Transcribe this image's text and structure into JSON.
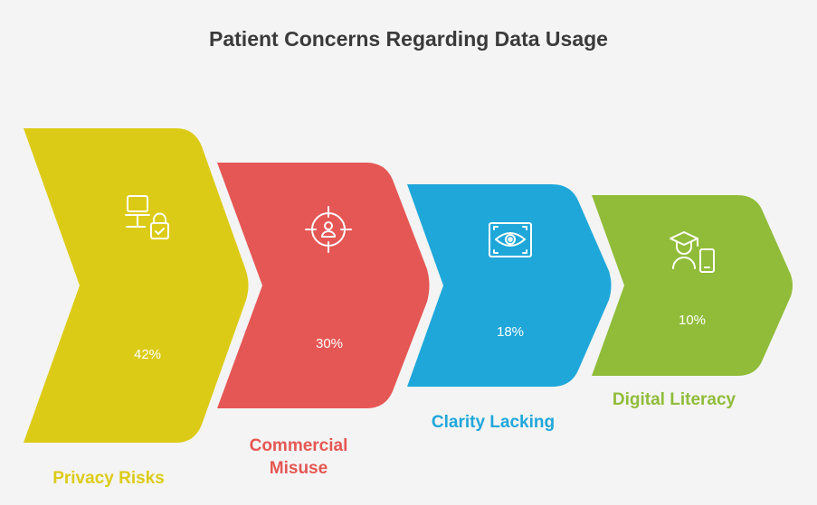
{
  "title": "Patient Concerns Regarding Data Usage",
  "steps": [
    {
      "label": "Privacy Risks",
      "value": "42%",
      "color": "#dccb16",
      "icon": "computer-lock-icon"
    },
    {
      "label": "Commercial\nMisuse",
      "value": "30%",
      "color": "#e55754",
      "icon": "target-person-icon"
    },
    {
      "label": "Clarity Lacking",
      "value": "18%",
      "color": "#1fa7da",
      "icon": "eye-scan-icon"
    },
    {
      "label": "Digital Literacy",
      "value": "10%",
      "color": "#90bc3a",
      "icon": "student-phone-icon"
    }
  ]
}
